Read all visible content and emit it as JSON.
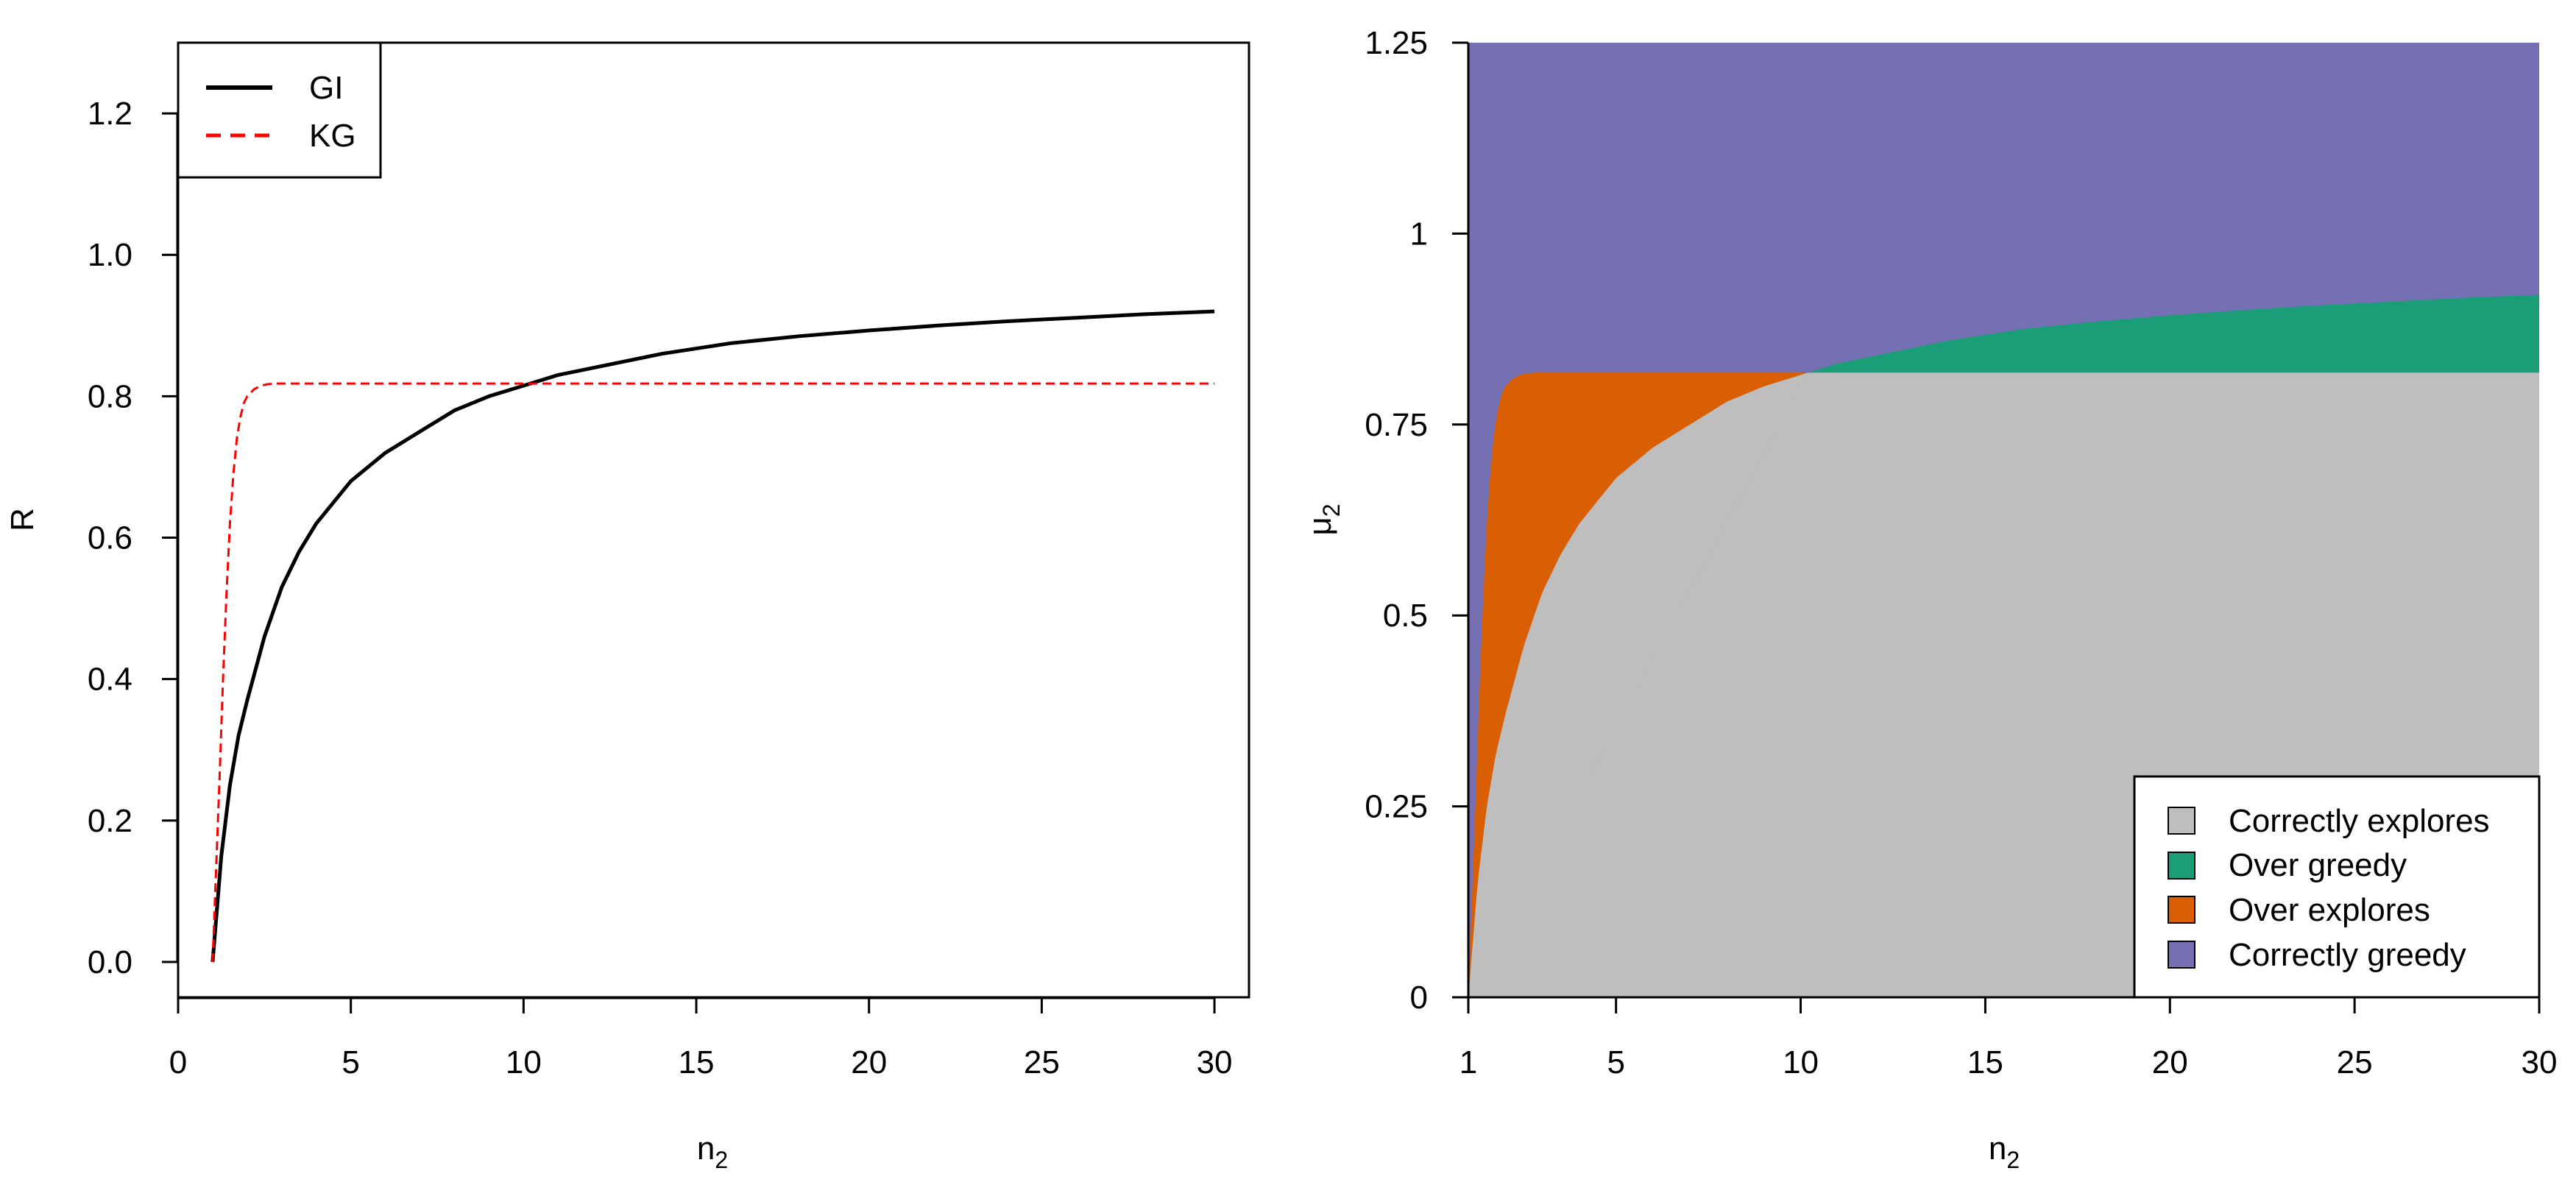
{
  "chart_data": [
    {
      "type": "line",
      "xlabel": "n",
      "xlabel_sub": "2",
      "ylabel": "R",
      "xlim": [
        0,
        31
      ],
      "ylim": [
        -0.05,
        1.3
      ],
      "x_ticks": [
        0,
        5,
        10,
        15,
        20,
        25,
        30
      ],
      "x_tick_labels": [
        "0",
        "5",
        "10",
        "15",
        "20",
        "25",
        "30"
      ],
      "y_ticks": [
        0.0,
        0.2,
        0.4,
        0.6,
        0.8,
        1.0,
        1.2
      ],
      "y_tick_labels": [
        "0.0",
        "0.2",
        "0.4",
        "0.6",
        "0.8",
        "1.0",
        "1.2"
      ],
      "legend": {
        "position": "top-left",
        "entries": [
          "GI",
          "KG"
        ]
      },
      "series": [
        {
          "name": "GI",
          "color": "#000000",
          "style": "solid",
          "x": [
            1,
            1.25,
            1.5,
            1.75,
            2,
            2.5,
            3,
            3.5,
            4,
            5,
            6,
            7,
            8,
            9,
            10,
            11,
            12,
            14,
            16,
            18,
            20,
            22,
            24,
            26,
            28,
            30
          ],
          "y": [
            0.0,
            0.15,
            0.25,
            0.32,
            0.37,
            0.46,
            0.53,
            0.58,
            0.62,
            0.68,
            0.72,
            0.75,
            0.78,
            0.8,
            0.815,
            0.83,
            0.84,
            0.86,
            0.875,
            0.885,
            0.893,
            0.9,
            0.906,
            0.911,
            0.916,
            0.92
          ]
        },
        {
          "name": "KG",
          "color": "#ff0000",
          "style": "dashed",
          "x": [
            1,
            1.1,
            1.2,
            1.3,
            1.4,
            1.5,
            1.6,
            1.7,
            1.8,
            1.9,
            2.0,
            2.2,
            2.4,
            2.6,
            2.8,
            3.0,
            4,
            6,
            10,
            15,
            20,
            25,
            30
          ],
          "y": [
            0.0,
            0.13,
            0.26,
            0.4,
            0.52,
            0.62,
            0.69,
            0.74,
            0.77,
            0.79,
            0.8,
            0.81,
            0.815,
            0.817,
            0.818,
            0.818,
            0.818,
            0.818,
            0.818,
            0.818,
            0.818,
            0.818,
            0.818
          ]
        }
      ]
    },
    {
      "type": "area",
      "xlabel": "n",
      "xlabel_sub": "2",
      "ylabel": "μ",
      "ylabel_sub": "2",
      "xlim": [
        1,
        30
      ],
      "ylim": [
        0,
        1.25
      ],
      "x_ticks": [
        1,
        5,
        10,
        15,
        20,
        25,
        30
      ],
      "x_tick_labels": [
        "1",
        "5",
        "10",
        "15",
        "20",
        "25",
        "30"
      ],
      "y_ticks": [
        0,
        0.25,
        0.5,
        0.75,
        1,
        1.25
      ],
      "y_tick_labels": [
        "0",
        "0.25",
        "0.5",
        "0.75",
        "1",
        "1.25"
      ],
      "legend": {
        "position": "bottom-right",
        "entries": [
          {
            "name": "Correctly explores",
            "color": "#bebebe"
          },
          {
            "name": "Over greedy",
            "color": "#1b9e77"
          },
          {
            "name": "Over explores",
            "color": "#d95f02"
          },
          {
            "name": "Correctly greedy",
            "color": "#7570b3"
          }
        ]
      },
      "kg_boundary": {
        "x": [
          1,
          1.1,
          1.2,
          1.3,
          1.4,
          1.5,
          1.6,
          1.7,
          1.8,
          1.9,
          2.0,
          2.2,
          2.4,
          2.6,
          2.8,
          3.0,
          30
        ],
        "y": [
          0.0,
          0.13,
          0.26,
          0.4,
          0.52,
          0.62,
          0.69,
          0.74,
          0.77,
          0.79,
          0.8,
          0.81,
          0.815,
          0.817,
          0.818,
          0.818,
          0.818
        ]
      },
      "gi_boundary": {
        "x": [
          1,
          1.25,
          1.5,
          1.75,
          2,
          2.5,
          3,
          3.5,
          4,
          5,
          6,
          7,
          8,
          9,
          10,
          11,
          12,
          14,
          16,
          18,
          20,
          22,
          24,
          26,
          28,
          30
        ],
        "y": [
          0.0,
          0.15,
          0.25,
          0.32,
          0.37,
          0.46,
          0.53,
          0.58,
          0.62,
          0.68,
          0.72,
          0.75,
          0.78,
          0.8,
          0.815,
          0.83,
          0.84,
          0.86,
          0.875,
          0.885,
          0.893,
          0.9,
          0.906,
          0.911,
          0.916,
          0.92
        ]
      }
    }
  ]
}
